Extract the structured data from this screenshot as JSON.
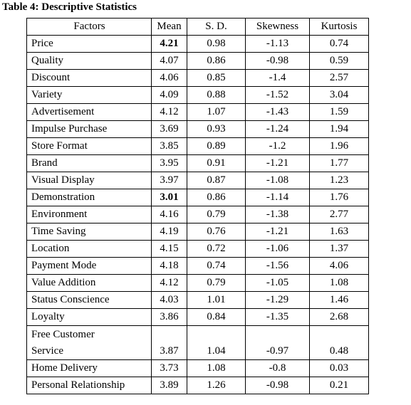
{
  "title": "Table 4: Descriptive Statistics",
  "table": {
    "header": [
      "Factors",
      "Mean",
      "S. D.",
      "Skewness",
      "Kurtosis"
    ],
    "rows": [
      [
        "Price",
        "4.21",
        "0.98",
        "-1.13",
        "0.74"
      ],
      [
        "Quality",
        "4.07",
        "0.86",
        "-0.98",
        "0.59"
      ],
      [
        "Discount",
        "4.06",
        "0.85",
        "-1.4",
        "2.57"
      ],
      [
        "Variety",
        "4.09",
        "0.88",
        "-1.52",
        "3.04"
      ],
      [
        "Advertisement",
        "4.12",
        "1.07",
        "-1.43",
        "1.59"
      ],
      [
        "Impulse Purchase",
        "3.69",
        "0.93",
        "-1.24",
        "1.94"
      ],
      [
        "Store Format",
        "3.85",
        "0.89",
        "-1.2",
        "1.96"
      ],
      [
        "Brand",
        "3.95",
        "0.91",
        "-1.21",
        "1.77"
      ],
      [
        "Visual Display",
        "3.97",
        "0.87",
        "-1.08",
        "1.23"
      ],
      [
        "Demonstration",
        "3.01",
        "0.86",
        "-1.14",
        "1.76"
      ],
      [
        "Environment",
        "4.16",
        "0.79",
        "-1.38",
        "2.77"
      ],
      [
        "Time Saving",
        "4.19",
        "0.76",
        "-1.21",
        "1.63"
      ],
      [
        "Location",
        "4.15",
        "0.72",
        "-1.06",
        "1.37"
      ],
      [
        "Payment Mode",
        "4.18",
        "0.74",
        "-1.56",
        "4.06"
      ],
      [
        "Value Addition",
        "4.12",
        "0.79",
        "-1.05",
        "1.08"
      ],
      [
        "Status Conscience",
        "4.03",
        "1.01",
        "-1.29",
        "1.46"
      ],
      [
        "Loyalty",
        "3.86",
        "0.84",
        "-1.35",
        "2.68"
      ],
      [
        "Free Customer Service",
        "3.87",
        "1.04",
        "-0.97",
        "0.48"
      ],
      [
        "Home Delivery",
        "3.73",
        "1.08",
        "-0.8",
        "0.03"
      ],
      [
        "Personal Relationship",
        "3.89",
        "1.26",
        "-0.98",
        "0.21"
      ]
    ]
  }
}
